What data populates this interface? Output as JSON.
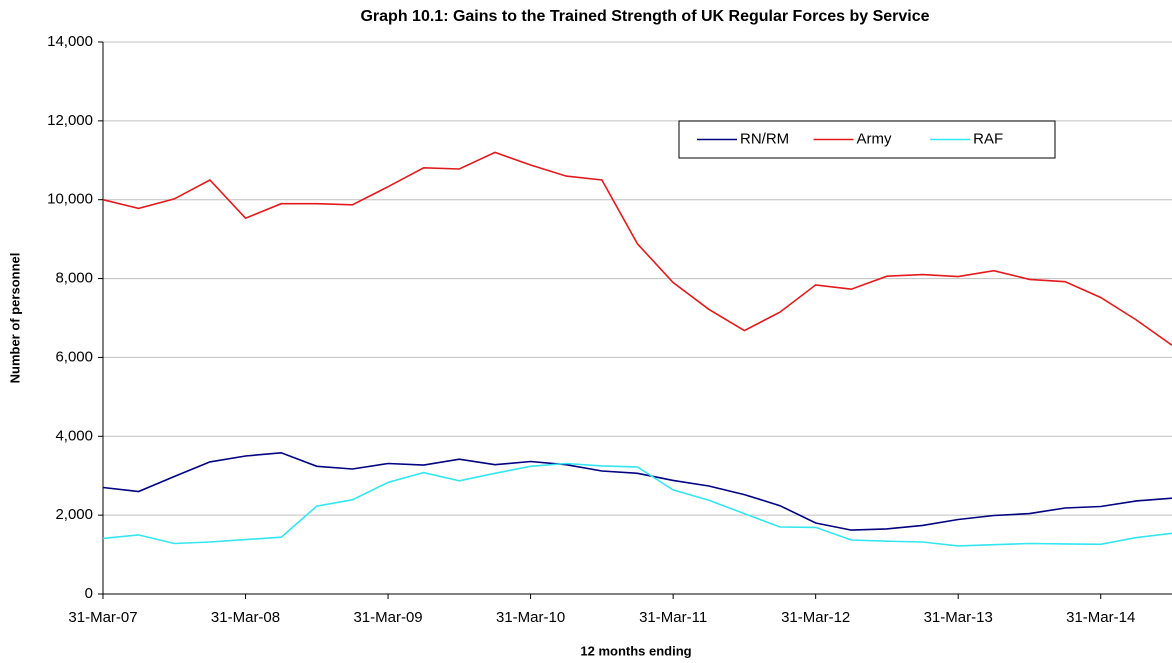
{
  "chart_data": {
    "type": "line",
    "title": "Graph 10.1: Gains to the Trained Strength of UK Regular Forces by Service",
    "x_label": "12 months ending",
    "y_label": "Number of personnel",
    "categories": [
      "31-Mar-07",
      null,
      null,
      null,
      "31-Mar-08",
      null,
      null,
      null,
      "31-Mar-09",
      null,
      null,
      null,
      "31-Mar-10",
      null,
      null,
      null,
      "31-Mar-11",
      null,
      null,
      null,
      "31-Mar-12",
      null,
      null,
      null,
      "31-Mar-13",
      null,
      null,
      null,
      "31-Mar-14",
      null,
      null
    ],
    "series": [
      {
        "name": "RN/RM",
        "color": "#000080",
        "values": [
          2700,
          2600,
          2980,
          3350,
          3500,
          3580,
          3240,
          3170,
          3310,
          3270,
          3420,
          3280,
          3360,
          3280,
          3120,
          3060,
          2880,
          2740,
          2520,
          2240,
          1800,
          1620,
          1650,
          1740,
          1890,
          1990,
          2040,
          2180,
          2220,
          2360,
          2430
        ]
      },
      {
        "name": "Army",
        "color": "#e31a1c",
        "values": [
          10000,
          9780,
          10020,
          10500,
          9530,
          9900,
          9900,
          9870,
          10330,
          10810,
          10780,
          11200,
          10880,
          10600,
          10500,
          8880,
          7900,
          7220,
          6680,
          7150,
          7840,
          7730,
          8060,
          8100,
          8050,
          8200,
          7980,
          7920,
          7520,
          6950,
          6310
        ]
      },
      {
        "name": "RAF",
        "color": "#33e6f0",
        "values": [
          1410,
          1500,
          1280,
          1320,
          1380,
          1440,
          2230,
          2390,
          2830,
          3080,
          2870,
          3060,
          3240,
          3310,
          3250,
          3220,
          2640,
          2380,
          2040,
          1700,
          1690,
          1370,
          1340,
          1320,
          1220,
          1250,
          1280,
          1270,
          1260,
          1430,
          1540
        ]
      }
    ],
    "ylim": [
      0,
      14000
    ],
    "yticks": [
      0,
      {
        "value": 2000,
        "label": "2,000"
      },
      {
        "value": 4000,
        "label": "4,000"
      },
      {
        "value": 6000,
        "label": "6,000"
      },
      {
        "value": 8000,
        "label": "8,000"
      },
      {
        "value": 10000,
        "label": "10,000"
      },
      {
        "value": 12000,
        "label": "12,000"
      },
      {
        "value": 14000,
        "label": "14,000"
      }
    ],
    "grid": true,
    "legend": "top-right"
  }
}
